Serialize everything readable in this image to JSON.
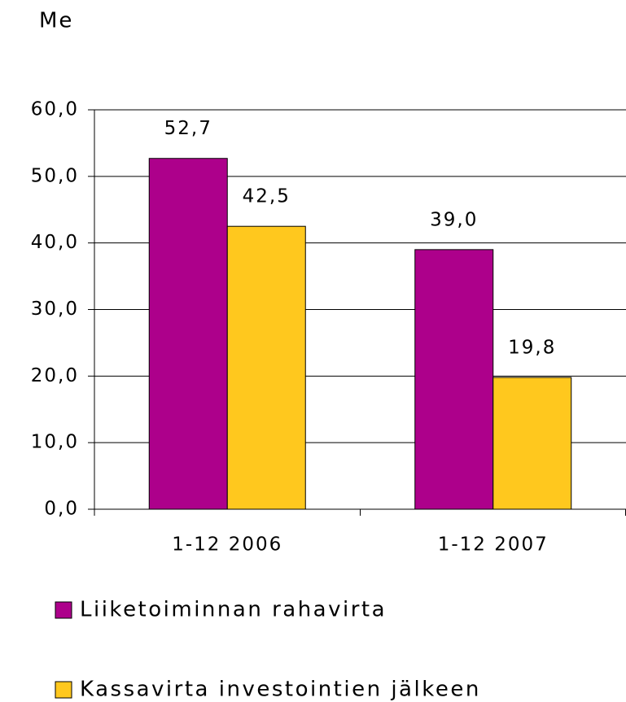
{
  "chart_data": {
    "type": "bar",
    "title": "Me",
    "categories": [
      "1-12 2006",
      "1-12 2007"
    ],
    "series": [
      {
        "name": "Liiketoiminnan rahavirta",
        "color": "#ad008b",
        "values": [
          52.7,
          39.0
        ],
        "value_labels": [
          "52,7",
          "39,0"
        ]
      },
      {
        "name": "Kassavirta investointien jälkeen",
        "color": "#ffc81e",
        "values": [
          42.5,
          19.8
        ],
        "value_labels": [
          "42,5",
          "19,8"
        ]
      }
    ],
    "ylim": [
      0,
      60
    ],
    "yticks": [
      {
        "value": 0,
        "label": "0,0"
      },
      {
        "value": 10,
        "label": "10,0"
      },
      {
        "value": 20,
        "label": "20,0"
      },
      {
        "value": 30,
        "label": "30,0"
      },
      {
        "value": 40,
        "label": "40,0"
      },
      {
        "value": 50,
        "label": "50,0"
      },
      {
        "value": 60,
        "label": "60,0"
      }
    ],
    "grid": true,
    "legend": "bottom"
  }
}
